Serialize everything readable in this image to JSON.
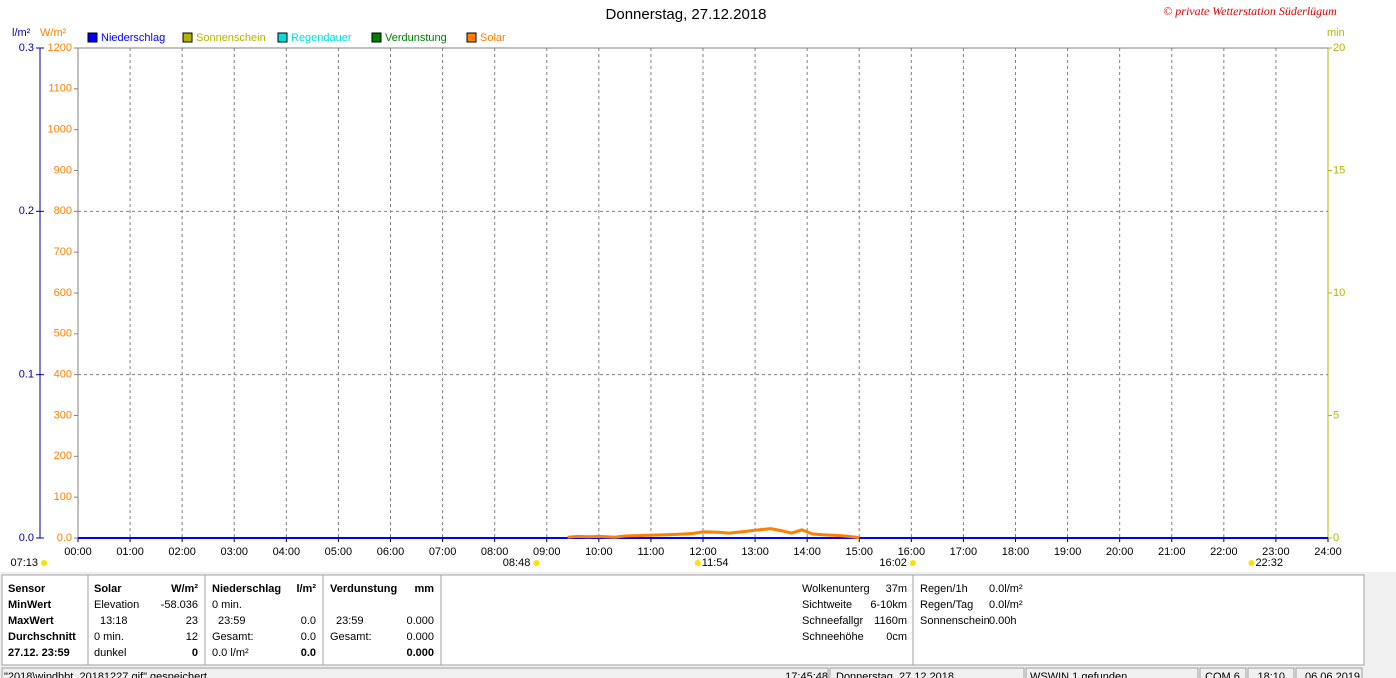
{
  "chart_data": {
    "type": "line",
    "title": "Donnerstag, 27.12.2018",
    "copyright": "© private Wetterstation Süderlügum",
    "y_unit": "W/m²",
    "y2_unit": "l/m²",
    "y3_unit": "min",
    "xlim": [
      0,
      24
    ],
    "xticks": [
      {
        "value": 0,
        "label": "00:00"
      },
      {
        "value": 1,
        "label": "01:00"
      },
      {
        "value": 2,
        "label": "02:00"
      },
      {
        "value": 3,
        "label": "03:00"
      },
      {
        "value": 4,
        "label": "04:00"
      },
      {
        "value": 5,
        "label": "05:00"
      },
      {
        "value": 6,
        "label": "06:00"
      },
      {
        "value": 7,
        "label": "07:00"
      },
      {
        "value": 8,
        "label": "08:00"
      },
      {
        "value": 9,
        "label": "09:00"
      },
      {
        "value": 10,
        "label": "10:00"
      },
      {
        "value": 11,
        "label": "11:00"
      },
      {
        "value": 12,
        "label": "12:00"
      },
      {
        "value": 13,
        "label": "13:00"
      },
      {
        "value": 14,
        "label": "14:00"
      },
      {
        "value": 15,
        "label": "15:00"
      },
      {
        "value": 16,
        "label": "16:00"
      },
      {
        "value": 17,
        "label": "17:00"
      },
      {
        "value": 18,
        "label": "18:00"
      },
      {
        "value": 19,
        "label": "19:00"
      },
      {
        "value": 20,
        "label": "20:00"
      },
      {
        "value": 21,
        "label": "21:00"
      },
      {
        "value": 22,
        "label": "22:00"
      },
      {
        "value": 23,
        "label": "23:00"
      },
      {
        "value": 24,
        "label": "24:00"
      }
    ],
    "ylim": [
      0,
      1200
    ],
    "yticks": [
      {
        "value": 0,
        "label": "0.0"
      },
      100,
      200,
      300,
      400,
      500,
      600,
      700,
      800,
      900,
      1000,
      1100,
      1200
    ],
    "y2lim": [
      0,
      0.3
    ],
    "y2ticks": [
      {
        "value": 0,
        "label": "0.0"
      },
      0.1,
      0.2,
      0.3
    ],
    "y3lim": [
      0,
      20
    ],
    "y3ticks": [
      0,
      5,
      10,
      15,
      20
    ],
    "grid": true,
    "series": [
      {
        "name": "Niederschlag",
        "color": "#0000ff",
        "axis": "y2",
        "x": [
          0,
          24
        ],
        "values": [
          0,
          0
        ]
      },
      {
        "name": "Sonnenschein",
        "color": "#b4b400",
        "axis": "y3",
        "x": [],
        "values": []
      },
      {
        "name": "Regendauer",
        "color": "#00e0e0",
        "axis": "y3",
        "x": [],
        "values": []
      },
      {
        "name": "Verdunstung",
        "color": "#008000",
        "axis": "y2",
        "x": [],
        "values": []
      },
      {
        "name": "Solar",
        "color": "#ff8000",
        "axis": "y",
        "x": [
          9.4,
          9.6,
          9.8,
          10.0,
          10.3,
          10.5,
          10.8,
          11.0,
          11.3,
          11.5,
          11.8,
          12.0,
          12.3,
          12.5,
          12.8,
          13.0,
          13.3,
          13.5,
          13.7,
          13.9,
          14.1,
          14.3,
          14.6,
          14.8,
          15.0
        ],
        "values": [
          2,
          4,
          3,
          4,
          2,
          5,
          6,
          7,
          8,
          9,
          11,
          15,
          14,
          12,
          16,
          19,
          23,
          18,
          12,
          20,
          10,
          8,
          6,
          4,
          1
        ]
      }
    ],
    "annotations": [
      {
        "label": "07:13"
      },
      {
        "x": 8.8,
        "label": "08:48"
      },
      {
        "x": 11.9,
        "label": "11:54"
      },
      {
        "x": 16.03,
        "label": "16:02"
      },
      {
        "x": 22.53,
        "label": "22:32"
      }
    ]
  },
  "stats": {
    "row_labels": [
      "Sensor",
      "MinWert",
      "MaxWert",
      "Durchschnitt",
      "27.12. 23:59"
    ],
    "groups": [
      {
        "name": "Solar",
        "unit": "W/m²",
        "rows": [
          {
            "left": "Elevation",
            "right": "-58.036"
          },
          {
            "left": "13:18",
            "right": "23"
          },
          {
            "left": "0 min.",
            "right": "12"
          },
          {
            "left": "dunkel",
            "right": "0"
          }
        ]
      },
      {
        "name": "Niederschlag",
        "unit": "l/m²",
        "rows": [
          {
            "left": "0 min."
          },
          {
            "left": "23:59",
            "right": "0.0"
          },
          {
            "left": "Gesamt:",
            "right": "0.0"
          },
          {
            "left": "0.0 l/m²",
            "right": "0.0"
          }
        ]
      },
      {
        "name": "Verdunstung",
        "unit": "mm",
        "rows": [
          {},
          {
            "left": "23:59",
            "right": "0.000"
          },
          {
            "left": "Gesamt:",
            "right": "0.000"
          },
          {
            "right": "0.000"
          }
        ]
      }
    ],
    "conditions": [
      {
        "label": "Wolkenunterg",
        "value": "37m"
      },
      {
        "label": "Sichtweite",
        "value": "6-10km"
      },
      {
        "label": "Schneefallgr",
        "value": "1160m"
      },
      {
        "label": "Schneehöhe",
        "value": "0cm"
      }
    ],
    "rain": [
      {
        "label": "Regen/1h",
        "value": "0.0l/m²"
      },
      {
        "label": "Regen/Tag",
        "value": "0.0l/m²"
      },
      {
        "label": "Sonnenschein",
        "value": "0.00h"
      }
    ]
  },
  "status_bar": [
    "\"2018\\windhbt_20181227.gif\" gespeichert",
    "17:45:48",
    "Donnerstag, 27.12.2018",
    "WSWIN 1 gefunden",
    "COM 6",
    "18:10",
    "06.06.2019"
  ]
}
